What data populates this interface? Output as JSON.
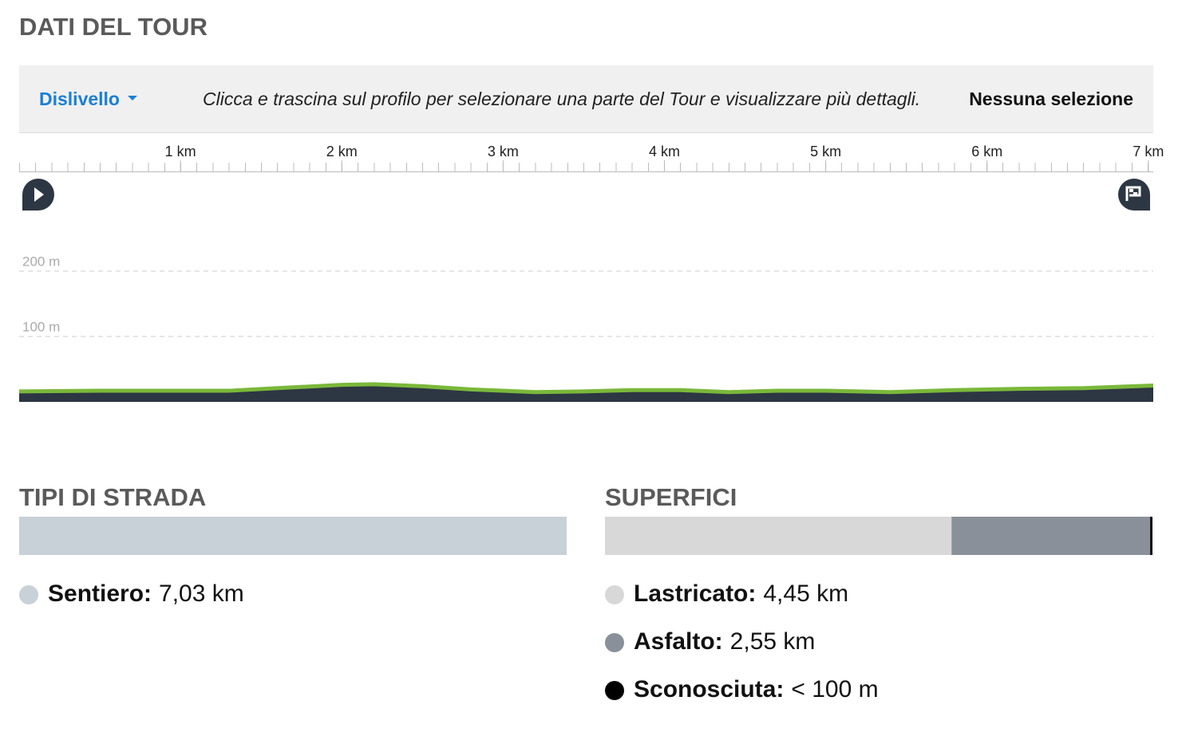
{
  "header": {
    "title": "DATI DEL TOUR"
  },
  "toolbar": {
    "dropdown": "Dislivello",
    "hint": "Clicca e trascina sul profilo per selezionare una parte del Tour e visualizzare più dettagli.",
    "selection": "Nessuna selezione"
  },
  "chart_data": {
    "type": "area",
    "x": [
      0,
      0.5,
      1,
      1.3,
      1.6,
      2.0,
      2.2,
      2.5,
      2.8,
      3.2,
      3.5,
      3.8,
      4.1,
      4.4,
      4.7,
      5.0,
      5.4,
      5.8,
      6.2,
      6.6,
      7.03
    ],
    "values": [
      16,
      17,
      17,
      17,
      21,
      26,
      27,
      24,
      19,
      15,
      16,
      18,
      18,
      15,
      17,
      17,
      15,
      18,
      20,
      21,
      25
    ],
    "xlim": [
      0,
      7.03
    ],
    "xticks": [
      {
        "value": 1,
        "label": "1 km"
      },
      {
        "value": 2,
        "label": "2 km"
      },
      {
        "value": 3,
        "label": "3 km"
      },
      {
        "value": 4,
        "label": "4 km"
      },
      {
        "value": 5,
        "label": "5 km"
      },
      {
        "value": 6,
        "label": "6 km"
      },
      {
        "value": 7,
        "label": "7 km"
      }
    ],
    "ylim": [
      0,
      250
    ],
    "yticks": [
      {
        "value": 100,
        "label": "100 m"
      },
      {
        "value": 200,
        "label": "200 m"
      }
    ],
    "grid": true,
    "color": "#2d3643",
    "line_color": "#7ab83a"
  },
  "road_types": {
    "title": "TIPI DI STRADA",
    "items": [
      {
        "name": "Sentiero:",
        "value": "7,03 km",
        "km": 7.03,
        "color": "#c8d0d8"
      }
    ]
  },
  "surfaces": {
    "title": "SUPERFICI",
    "items": [
      {
        "name": "Lastricato:",
        "value": "4,45 km",
        "km": 4.45,
        "color": "#d8d8d8"
      },
      {
        "name": "Asfalto:",
        "value": "2,55 km",
        "km": 2.55,
        "color": "#8a9099"
      },
      {
        "name": "Sconosciuta:",
        "value": "< 100 m",
        "km": 0.03,
        "color": "#000000"
      }
    ]
  }
}
